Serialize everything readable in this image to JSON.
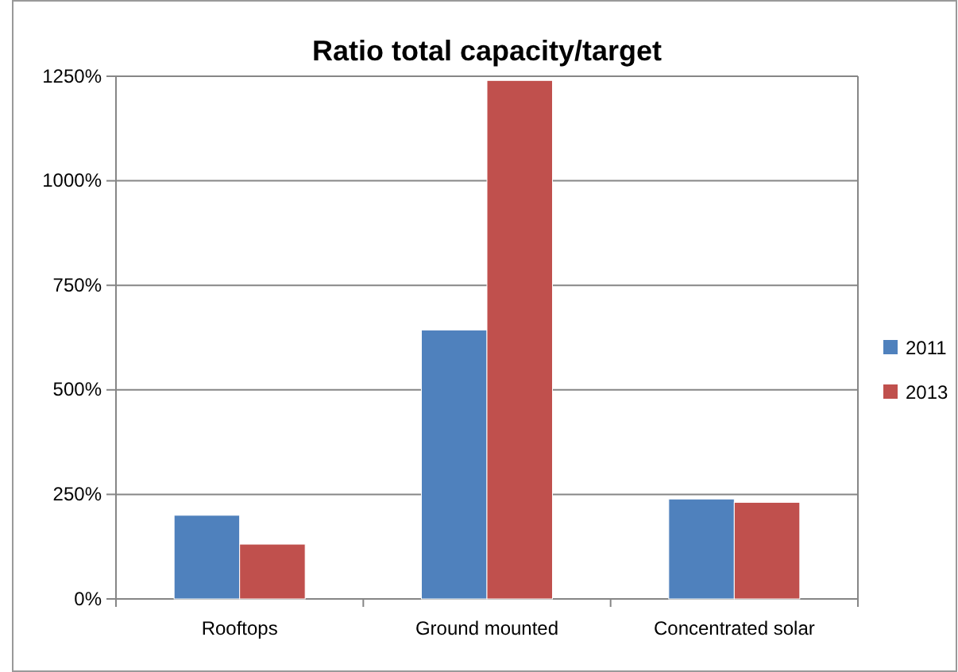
{
  "chart_data": {
    "type": "bar",
    "title": "Ratio total capacity/target",
    "categories": [
      "Rooftops",
      "Ground mounted",
      "Concentrated solar"
    ],
    "series": [
      {
        "name": "2011",
        "color": "#4f81bd",
        "values": [
          200,
          643,
          239
        ]
      },
      {
        "name": "2013",
        "color": "#c0504d",
        "values": [
          131,
          1240,
          231
        ]
      }
    ],
    "ylim": [
      0,
      1250
    ],
    "yticks": [
      {
        "value": 0,
        "label": "0%"
      },
      {
        "value": 250,
        "label": "250%"
      },
      {
        "value": 500,
        "label": "500%"
      },
      {
        "value": 750,
        "label": "750%"
      },
      {
        "value": 1000,
        "label": "1000%"
      },
      {
        "value": 1250,
        "label": "1250%"
      }
    ],
    "grid": "y",
    "legend": "right"
  }
}
